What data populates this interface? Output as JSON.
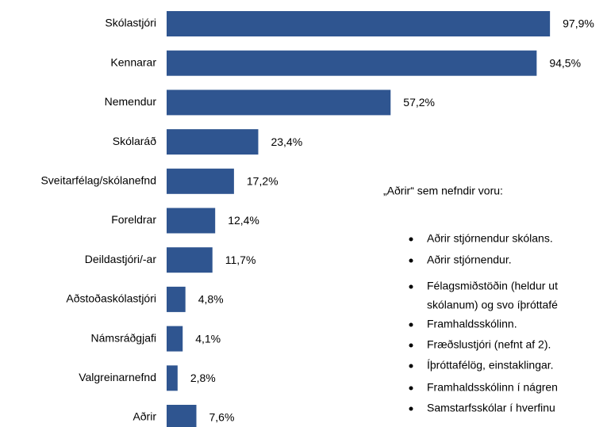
{
  "chart_data": {
    "type": "bar",
    "orientation": "horizontal",
    "color": "#2f5590",
    "categories": [
      "Skólastjóri",
      "Kennarar",
      "Nemendur",
      "Skólaráð",
      "Sveitarfélag/skólanefnd",
      "Foreldrar",
      "Deildastjóri/-ar",
      "Aðstoðaskólastjóri",
      "Námsráðgjafi",
      "Valgreinarnefnd",
      "Aðrir"
    ],
    "values": [
      97.9,
      94.5,
      57.2,
      23.4,
      17.2,
      12.4,
      11.7,
      4.8,
      4.1,
      2.8,
      7.6
    ],
    "value_labels": [
      "97,9%",
      "94,5%",
      "57,2%",
      "23,4%",
      "17,2%",
      "12,4%",
      "11,7%",
      "4,8%",
      "4,1%",
      "2,8%",
      "7,6%"
    ],
    "annotation": {
      "title": "„Aðrir“ sem nefndir voru:",
      "items": [
        "Aðrir stjórnendur skólans.",
        "Aðrir stjórnendur.",
        "Félagsmiðstöðin (heldur ut",
        "skólanum) og svo íþróttafé",
        "Framhaldsskólinn.",
        "Fræðslustjóri (nefnt af 2).",
        "Íþróttafélög, einstaklingar.",
        "Framhaldsskólinn í nágren",
        "Samstarfsskólar í hverfinu"
      ]
    }
  }
}
